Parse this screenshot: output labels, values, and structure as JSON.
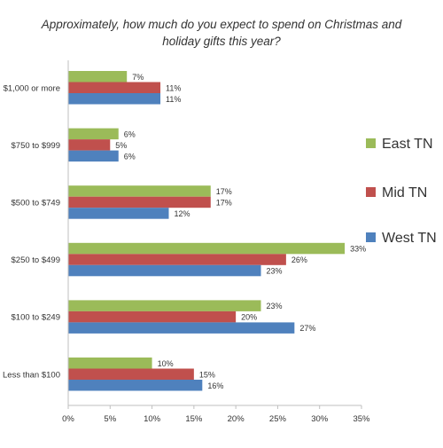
{
  "chart_data": {
    "type": "bar",
    "orientation": "horizontal",
    "title_line1": "Approximately, how much do you expect to spend on Christmas and",
    "title_line2": "holiday gifts this year?",
    "categories": [
      "$1,000 or more",
      "$750 to $999",
      "$500 to $749",
      "$250 to $499",
      "$100 to $249",
      "Less than $100"
    ],
    "series": [
      {
        "name": "East TN",
        "color": "#9BBB59",
        "values": [
          7,
          6,
          17,
          33,
          23,
          10
        ],
        "labels": [
          "7%",
          "6%",
          "17%",
          "33%",
          "23%",
          "10%"
        ]
      },
      {
        "name": "Mid TN",
        "color": "#C0504D",
        "values": [
          11,
          5,
          17,
          26,
          20,
          15
        ],
        "labels": [
          "11%",
          "5%",
          "17%",
          "26%",
          "20%",
          "15%"
        ]
      },
      {
        "name": "West TN",
        "color": "#4F81BD",
        "values": [
          11,
          6,
          12,
          23,
          27,
          16
        ],
        "labels": [
          "11%",
          "6%",
          "12%",
          "23%",
          "27%",
          "16%"
        ]
      }
    ],
    "xlim": [
      0,
      35
    ],
    "x_ticks": [
      0,
      5,
      10,
      15,
      20,
      25,
      30,
      35
    ],
    "x_tick_labels": [
      "0%",
      "5%",
      "10%",
      "15%",
      "20%",
      "25%",
      "30%",
      "35%"
    ],
    "grid": false,
    "legend_position": "right"
  }
}
